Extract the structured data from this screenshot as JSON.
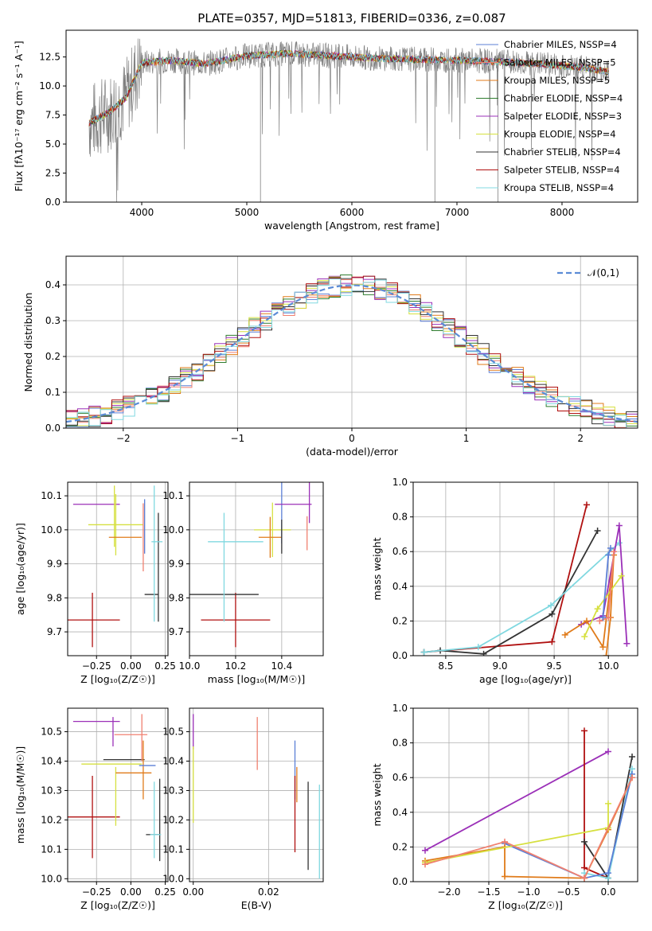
{
  "chart_data": [
    {
      "id": "spectrum",
      "type": "line",
      "title": "PLATE=0357, MJD=51813, FIBERID=0336, z=0.087",
      "xlabel": "wavelength [Angstrom, rest frame]",
      "ylabel": "Flux [fλ10⁻¹⁷ erg cm⁻² s⁻¹ A⁻¹]",
      "xlim": [
        3280,
        8720
      ],
      "ylim": [
        0,
        14.8
      ],
      "xticks": [
        4000,
        5000,
        6000,
        7000,
        8000
      ],
      "yticks": [
        0.0,
        2.5,
        5.0,
        7.5,
        10.0,
        12.5
      ],
      "legend_position": "right",
      "series": [
        {
          "name": "Chabrier MILES, NSSP=4",
          "color": "#5b7fd6"
        },
        {
          "name": "Salpeter MILES, NSSP=5",
          "color": "#f08070"
        },
        {
          "name": "Kroupa MILES, NSSP=5",
          "color": "#e07b1a"
        },
        {
          "name": "Chabrier ELODIE, NSSP=4",
          "color": "#2f7d2f"
        },
        {
          "name": "Salpeter ELODIE, NSSP=3",
          "color": "#9b30b8"
        },
        {
          "name": "Kroupa ELODIE, NSSP=4",
          "color": "#d6e040"
        },
        {
          "name": "Chabrier STELIB, NSSP=4",
          "color": "#333333"
        },
        {
          "name": "Salpeter STELIB, NSSP=4",
          "color": "#b01010"
        },
        {
          "name": "Kroupa STELIB, NSSP=4",
          "color": "#80d8e0"
        }
      ],
      "data_color": "#808080",
      "continuum": {
        "x": [
          3500,
          3700,
          3850,
          4000,
          4300,
          4600,
          5000,
          5400,
          5800,
          6200,
          6600,
          7000,
          7400,
          7800,
          8200,
          8450
        ],
        "y": [
          6.8,
          7.8,
          9.0,
          12.0,
          12.2,
          11.9,
          12.6,
          12.8,
          12.6,
          12.4,
          12.3,
          12.2,
          12.1,
          11.9,
          11.6,
          11.2
        ]
      }
    },
    {
      "id": "residuals",
      "type": "histogram",
      "xlabel": "(data-model)/error",
      "ylabel": "Normed distribution",
      "xlim": [
        -2.5,
        2.5
      ],
      "ylim": [
        0,
        0.48
      ],
      "xticks": [
        -2,
        -1,
        0,
        1,
        2
      ],
      "yticks": [
        0.0,
        0.1,
        0.2,
        0.3,
        0.4
      ],
      "legend": "𝒩(0,1)",
      "gaussian_color": "#5b8bd6",
      "grid": true
    },
    {
      "id": "age_vs_Z",
      "type": "scatter",
      "xlabel": "Z [log₁₀(Z/Z☉)]",
      "ylabel": "age  [log₁₀(age/yr)]",
      "xlim": [
        -0.46,
        0.27
      ],
      "ylim": [
        9.63,
        10.14
      ],
      "xticks": [
        -0.25,
        0.0,
        0.25
      ],
      "yticks": [
        9.7,
        9.8,
        9.9,
        10.0,
        10.1
      ],
      "points": [
        {
          "x": -0.28,
          "y": 9.735,
          "xerr": 0.2,
          "yerr": 0.08,
          "color": "#b01010"
        },
        {
          "x": -0.25,
          "y": 10.075,
          "xerr": 0.17,
          "yerr": 0.0,
          "color": "#9b30b8"
        },
        {
          "x": -0.12,
          "y": 10.04,
          "xerr": 0.0,
          "yerr": 0.09,
          "color": "#d6e040"
        },
        {
          "x": -0.11,
          "y": 10.015,
          "xerr": 0.2,
          "yerr": 0.09,
          "color": "#d6e040"
        },
        {
          "x": -0.04,
          "y": 9.978,
          "xerr": 0.12,
          "yerr": 0.0,
          "color": "#e07b1a"
        },
        {
          "x": 0.09,
          "y": 9.978,
          "xerr": 0.0,
          "yerr": 0.1,
          "color": "#f08070"
        },
        {
          "x": 0.1,
          "y": 10.01,
          "xerr": 0.0,
          "yerr": 0.08,
          "color": "#5b7fd6"
        },
        {
          "x": 0.15,
          "y": 9.81,
          "xerr": 0.05,
          "yerr": 0.0,
          "color": "#333333"
        },
        {
          "x": 0.2,
          "y": 9.89,
          "xerr": 0.0,
          "yerr": 0.16,
          "color": "#333333"
        },
        {
          "x": 0.19,
          "y": 9.965,
          "xerr": 0.04,
          "yerr": 0.0,
          "color": "#80d8e0"
        },
        {
          "x": 0.17,
          "y": 9.93,
          "xerr": 0.0,
          "yerr": 0.2,
          "color": "#80d8e0"
        }
      ]
    },
    {
      "id": "age_vs_mass",
      "type": "scatter",
      "xlabel": "mass [log₁₀(M/M☉)]",
      "ylabel": "",
      "xlim": [
        10.0,
        10.58
      ],
      "ylim": [
        9.63,
        10.14
      ],
      "xticks": [
        10.0,
        10.2,
        10.4
      ],
      "yticks": [
        9.7,
        9.8,
        9.9,
        10.0,
        10.1
      ],
      "points": [
        {
          "x": 10.2,
          "y": 9.735,
          "xerr": 0.15,
          "yerr": 0.08,
          "color": "#b01010"
        },
        {
          "x": 10.15,
          "y": 9.81,
          "xerr": 0.15,
          "yerr": 0.0,
          "color": "#333333"
        },
        {
          "x": 10.15,
          "y": 9.89,
          "xerr": 0.0,
          "yerr": 0.16,
          "color": "#80d8e0"
        },
        {
          "x": 10.2,
          "y": 9.965,
          "xerr": 0.12,
          "yerr": 0.0,
          "color": "#80d8e0"
        },
        {
          "x": 10.36,
          "y": 10.0,
          "xerr": 0.08,
          "yerr": 0.08,
          "color": "#d6e040"
        },
        {
          "x": 10.35,
          "y": 9.978,
          "xerr": 0.05,
          "yerr": 0.06,
          "color": "#e07b1a"
        },
        {
          "x": 10.4,
          "y": 10.06,
          "xerr": 0.0,
          "yerr": 0.1,
          "color": "#5b7fd6"
        },
        {
          "x": 10.45,
          "y": 10.075,
          "xerr": 0.08,
          "yerr": 0.0,
          "color": "#9b30b8"
        },
        {
          "x": 10.52,
          "y": 10.08,
          "xerr": 0.0,
          "yerr": 0.06,
          "color": "#9b30b8"
        },
        {
          "x": 10.51,
          "y": 9.99,
          "xerr": 0.0,
          "yerr": 0.05,
          "color": "#f08070"
        },
        {
          "x": 10.4,
          "y": 9.98,
          "xerr": 0.0,
          "yerr": 0.05,
          "color": "#333333"
        }
      ]
    },
    {
      "id": "massweight_vs_age",
      "type": "line",
      "xlabel": "age  [log₁₀(age/yr)]",
      "ylabel": "mass weight",
      "xlim": [
        8.2,
        10.27
      ],
      "ylim": [
        0,
        1.0
      ],
      "xticks": [
        8.5,
        9.0,
        9.5,
        10.0
      ],
      "yticks": [
        0.0,
        0.2,
        0.4,
        0.6,
        0.8,
        1.0
      ],
      "grid": true,
      "series": [
        {
          "color": "#b01010",
          "x": [
            8.3,
            9.48,
            9.8
          ],
          "y": [
            0.02,
            0.08,
            0.87
          ]
        },
        {
          "color": "#333333",
          "x": [
            8.3,
            8.45,
            8.85,
            9.48,
            9.9
          ],
          "y": [
            0.02,
            0.03,
            0.01,
            0.24,
            0.72
          ]
        },
        {
          "color": "#80d8e0",
          "x": [
            8.3,
            8.8,
            9.47,
            10.1
          ],
          "y": [
            0.02,
            0.05,
            0.29,
            0.65
          ]
        },
        {
          "color": "#9b30b8",
          "x": [
            9.75,
            9.95,
            10.1,
            10.17
          ],
          "y": [
            0.18,
            0.23,
            0.75,
            0.07
          ]
        },
        {
          "color": "#e07b1a",
          "x": [
            9.6,
            9.8,
            9.95,
            10.05,
            10.02,
            9.98
          ],
          "y": [
            0.12,
            0.2,
            0.05,
            0.58,
            0.22,
            0.0
          ]
        },
        {
          "color": "#d6e040",
          "x": [
            9.78,
            9.9,
            10.12
          ],
          "y": [
            0.11,
            0.27,
            0.46
          ]
        },
        {
          "color": "#f08070",
          "x": [
            9.92,
            10.0,
            10.05
          ],
          "y": [
            0.2,
            0.22,
            0.6
          ]
        },
        {
          "color": "#5b7fd6",
          "x": [
            9.95,
            10.0,
            10.02
          ],
          "y": [
            0.22,
            0.58,
            0.62
          ]
        }
      ]
    },
    {
      "id": "mass_vs_Z",
      "type": "scatter",
      "xlabel": "Z [log₁₀(Z/Z☉)]",
      "ylabel": "mass [log₁₀(M/M☉)]",
      "xlim": [
        -0.46,
        0.27
      ],
      "ylim": [
        9.99,
        10.58
      ],
      "xticks": [
        -0.25,
        0.0,
        0.25
      ],
      "yticks": [
        10.0,
        10.1,
        10.2,
        10.3,
        10.4,
        10.5
      ],
      "points": [
        {
          "x": -0.28,
          "y": 10.21,
          "xerr": 0.2,
          "yerr": 0.14,
          "color": "#b01010"
        },
        {
          "x": -0.25,
          "y": 10.535,
          "xerr": 0.17,
          "yerr": 0.0,
          "color": "#9b30b8"
        },
        {
          "x": -0.13,
          "y": 10.5,
          "xerr": 0.0,
          "yerr": 0.05,
          "color": "#9b30b8"
        },
        {
          "x": -0.14,
          "y": 10.39,
          "xerr": 0.22,
          "yerr": 0.0,
          "color": "#d6e040"
        },
        {
          "x": -0.11,
          "y": 10.28,
          "xerr": 0.0,
          "yerr": 0.1,
          "color": "#d6e040"
        },
        {
          "x": -0.05,
          "y": 10.405,
          "xerr": 0.15,
          "yerr": 0.0,
          "color": "#333333"
        },
        {
          "x": 0.02,
          "y": 10.36,
          "xerr": 0.13,
          "yerr": 0.0,
          "color": "#e07b1a"
        },
        {
          "x": 0.09,
          "y": 10.37,
          "xerr": 0.0,
          "yerr": 0.1,
          "color": "#e07b1a"
        },
        {
          "x": 0.0,
          "y": 10.49,
          "xerr": 0.12,
          "yerr": 0.0,
          "color": "#f08070"
        },
        {
          "x": 0.08,
          "y": 10.48,
          "xerr": 0.0,
          "yerr": 0.08,
          "color": "#f08070"
        },
        {
          "x": 0.12,
          "y": 10.385,
          "xerr": 0.06,
          "yerr": 0.0,
          "color": "#5b7fd6"
        },
        {
          "x": 0.16,
          "y": 10.15,
          "xerr": 0.05,
          "yerr": 0.0,
          "color": "#333333"
        },
        {
          "x": 0.21,
          "y": 10.2,
          "xerr": 0.0,
          "yerr": 0.14,
          "color": "#333333"
        },
        {
          "x": 0.18,
          "y": 10.15,
          "xerr": 0.04,
          "yerr": 0.0,
          "color": "#80d8e0"
        },
        {
          "x": 0.17,
          "y": 10.2,
          "xerr": 0.0,
          "yerr": 0.13,
          "color": "#80d8e0"
        }
      ]
    },
    {
      "id": "mass_vs_EBV",
      "type": "scatter",
      "xlabel": "E(B-V)",
      "ylabel": "",
      "xlim": [
        -0.001,
        0.0345
      ],
      "ylim": [
        9.99,
        10.58
      ],
      "xticks": [
        0.0,
        0.02
      ],
      "yticks": [
        10.0,
        10.1,
        10.2,
        10.3,
        10.4,
        10.5
      ],
      "points": [
        {
          "x": 0.0,
          "y": 10.5,
          "xerr": 0.0,
          "yerr": 0.06,
          "color": "#9b30b8"
        },
        {
          "x": 0.0,
          "y": 10.32,
          "xerr": 0.0,
          "yerr": 0.13,
          "color": "#d6e040"
        },
        {
          "x": 0.017,
          "y": 10.46,
          "xerr": 0.0,
          "yerr": 0.09,
          "color": "#f08070"
        },
        {
          "x": 0.027,
          "y": 10.37,
          "xerr": 0.0,
          "yerr": 0.1,
          "color": "#5b7fd6"
        },
        {
          "x": 0.027,
          "y": 10.22,
          "xerr": 0.0,
          "yerr": 0.13,
          "color": "#b01010"
        },
        {
          "x": 0.0275,
          "y": 10.32,
          "xerr": 0.0,
          "yerr": 0.06,
          "color": "#e07b1a"
        },
        {
          "x": 0.0305,
          "y": 10.18,
          "xerr": 0.0,
          "yerr": 0.15,
          "color": "#333333"
        },
        {
          "x": 0.0335,
          "y": 10.16,
          "xerr": 0.0,
          "yerr": 0.16,
          "color": "#80d8e0"
        }
      ]
    },
    {
      "id": "massweight_vs_Z",
      "type": "line",
      "xlabel": "Z [log₁₀(Z/Z☉)]",
      "ylabel": "mass weight",
      "xlim": [
        -2.45,
        0.37
      ],
      "ylim": [
        0,
        1.0
      ],
      "xticks": [
        -2.0,
        -1.5,
        -1.0,
        -0.5,
        0.0
      ],
      "yticks": [
        0.0,
        0.2,
        0.4,
        0.6,
        0.8,
        1.0
      ],
      "grid": true,
      "series": [
        {
          "color": "#9b30b8",
          "x": [
            -2.3,
            0.0
          ],
          "y": [
            0.18,
            0.75
          ]
        },
        {
          "color": "#b01010",
          "x": [
            -0.3,
            -0.3,
            0.0
          ],
          "y": [
            0.87,
            0.08,
            0.02
          ]
        },
        {
          "color": "#333333",
          "x": [
            -0.3,
            0.0,
            0.3
          ],
          "y": [
            0.23,
            0.02,
            0.72
          ]
        },
        {
          "color": "#80d8e0",
          "x": [
            -0.3,
            0.0,
            0.3
          ],
          "y": [
            0.05,
            0.02,
            0.65
          ]
        },
        {
          "color": "#5b7fd6",
          "x": [
            -1.3,
            -0.3,
            0.0,
            0.3
          ],
          "y": [
            0.22,
            0.02,
            0.05,
            0.62
          ]
        },
        {
          "color": "#e07b1a",
          "x": [
            -2.3,
            -1.3,
            -1.3,
            -0.3,
            0.0,
            0.3
          ],
          "y": [
            0.12,
            0.2,
            0.03,
            0.02,
            0.3,
            0.6
          ]
        },
        {
          "color": "#d6e040",
          "x": [
            -2.3,
            0.0,
            0.0
          ],
          "y": [
            0.11,
            0.31,
            0.45
          ]
        },
        {
          "color": "#f08070",
          "x": [
            -2.3,
            -1.3,
            -0.3,
            0.3
          ],
          "y": [
            0.1,
            0.23,
            0.02,
            0.6
          ]
        }
      ]
    }
  ]
}
